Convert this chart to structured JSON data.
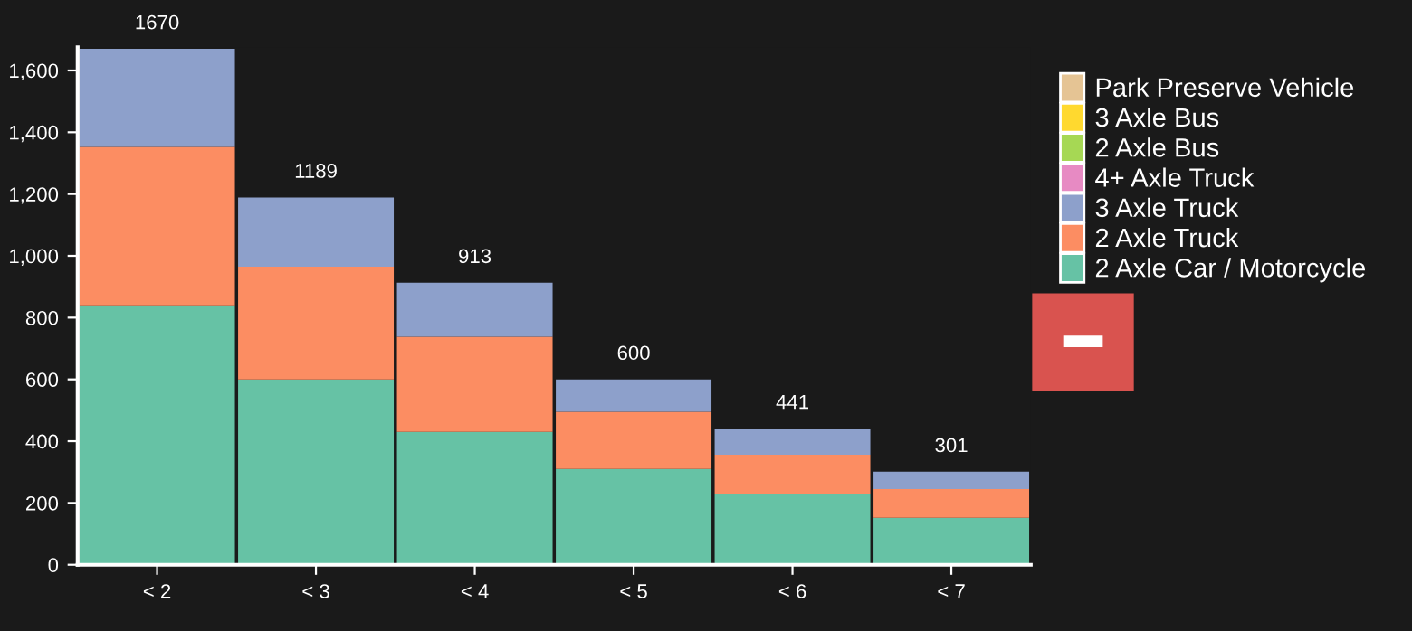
{
  "chart_data": {
    "type": "bar",
    "stacked": true,
    "categories": [
      "< 2",
      "< 3",
      "< 4",
      "< 5",
      "< 6",
      "< 7"
    ],
    "series": [
      {
        "name": "2 Axle Car / Motorcycle",
        "color": "#66c2a5",
        "values": [
          840,
          600,
          430,
          310,
          230,
          152
        ]
      },
      {
        "name": "2 Axle Truck",
        "color": "#fc8d62",
        "values": [
          513,
          365,
          308,
          185,
          126,
          93
        ]
      },
      {
        "name": "3 Axle Truck",
        "color": "#8da0cb",
        "values": [
          317,
          224,
          175,
          105,
          85,
          56
        ]
      },
      {
        "name": "4+ Axle Truck",
        "color": "#e78ac3",
        "values": [
          0,
          0,
          0,
          0,
          0,
          0
        ]
      },
      {
        "name": "2 Axle Bus",
        "color": "#a6d854",
        "values": [
          0,
          0,
          0,
          0,
          0,
          0
        ]
      },
      {
        "name": "3 Axle Bus",
        "color": "#ffd92f",
        "values": [
          0,
          0,
          0,
          0,
          0,
          0
        ]
      },
      {
        "name": "Park Preserve Vehicle",
        "color": "#e5c494",
        "values": [
          0,
          0,
          0,
          0,
          0,
          0
        ]
      }
    ],
    "totals": [
      "1670",
      "1189",
      "913",
      "600",
      "441",
      "301"
    ],
    "ylim": [
      0,
      1675
    ],
    "yticks": [
      0,
      {
        "value": 200,
        "label": "200"
      },
      {
        "value": 400,
        "label": "400"
      },
      {
        "value": 600,
        "label": "600"
      },
      {
        "value": 800,
        "label": "800"
      },
      {
        "value": 1000,
        "label": "1,000"
      },
      {
        "value": 1200,
        "label": "1,200"
      },
      {
        "value": 1400,
        "label": "1,400"
      },
      {
        "value": 1600,
        "label": "1,600"
      }
    ],
    "grid": false,
    "legend": "right"
  }
}
